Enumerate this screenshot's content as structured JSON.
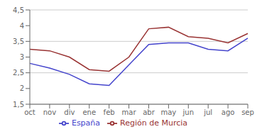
{
  "chart_data": {
    "type": "line",
    "categories": [
      "oct",
      "nov",
      "div",
      "ene",
      "feb",
      "mar",
      "abr",
      "may",
      "jun",
      "jul",
      "ago",
      "sep"
    ],
    "series": [
      {
        "name": "España",
        "color": "#4444cc",
        "values": [
          2.8,
          2.65,
          2.45,
          2.15,
          2.1,
          2.75,
          3.4,
          3.45,
          3.45,
          3.25,
          3.2,
          3.6
        ]
      },
      {
        "name": "Región de Murcia",
        "color": "#993333",
        "values": [
          3.25,
          3.2,
          3.0,
          2.6,
          2.55,
          3.0,
          3.9,
          3.95,
          3.65,
          3.6,
          3.45,
          3.75
        ]
      }
    ],
    "ylim": [
      1.5,
      4.5
    ],
    "yticks": [
      {
        "value": 1.5,
        "label": "1,5"
      },
      2,
      {
        "value": 2.5,
        "label": "2,5"
      },
      3,
      {
        "value": 3.5,
        "label": "3,5"
      },
      4,
      {
        "value": 4.5,
        "label": "4,5"
      }
    ],
    "grid": true,
    "legend": "bottom"
  }
}
